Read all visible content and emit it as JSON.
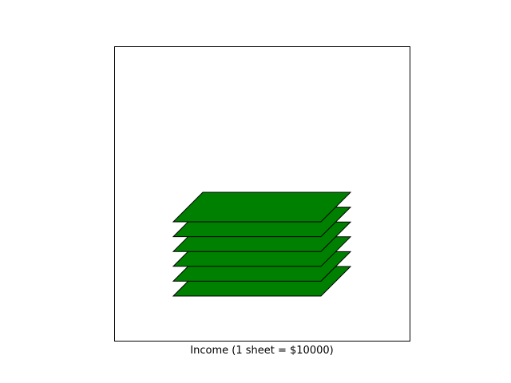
{
  "chart_data": {
    "type": "pictograph",
    "title": "",
    "xlabel": "Income (1 sheet = $10000)",
    "ylabel": "",
    "sheets": 6,
    "unit_value": 10000,
    "grid": false,
    "colors": {
      "sheet_fill": "#008000",
      "sheet_edge": "#000000",
      "axes_edge": "#000000",
      "background": "#ffffff"
    }
  }
}
